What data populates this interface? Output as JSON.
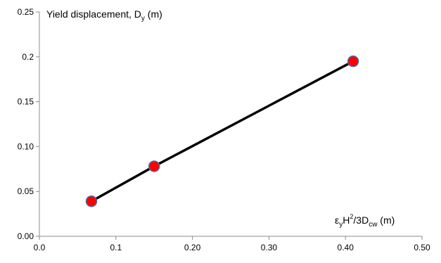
{
  "chart_data": {
    "type": "line",
    "title": "",
    "ylabel": {
      "text": "Yield displacement, D",
      "subscript": "y",
      "units": " (m)"
    },
    "xlabel": {
      "parts": [
        {
          "t": "ε",
          "k": "n"
        },
        {
          "t": "y",
          "k": "sub"
        },
        {
          "t": "H",
          "k": "n"
        },
        {
          "t": "2",
          "k": "sup"
        },
        {
          "t": "/3D",
          "k": "n"
        },
        {
          "t": "cw",
          "k": "sub"
        },
        {
          "t": "   (m)",
          "k": "n"
        }
      ]
    },
    "xlim": [
      0,
      0.5
    ],
    "ylim": [
      0,
      0.25
    ],
    "x_tick_values": [
      0,
      0.1,
      0.2,
      0.3,
      0.4,
      0.5
    ],
    "x_tick_labels": [
      "0.0",
      "0.1",
      "0.20",
      "0.30",
      "0.40",
      "0.50"
    ],
    "y_tick_values": [
      0,
      0.05,
      0.1,
      0.15,
      0.2,
      0.25
    ],
    "y_tick_labels": [
      "0.00",
      "0.05",
      "0.10",
      "0.15",
      "0.2",
      "0.25"
    ],
    "grid": false,
    "series": [
      {
        "x": [
          0.068,
          0.15,
          0.41
        ],
        "y": [
          0.039,
          0.078,
          0.195
        ],
        "line_color": "#000000",
        "marker_color": "#ff0000",
        "marker_edge_color": "#4a6fa5"
      }
    ]
  }
}
